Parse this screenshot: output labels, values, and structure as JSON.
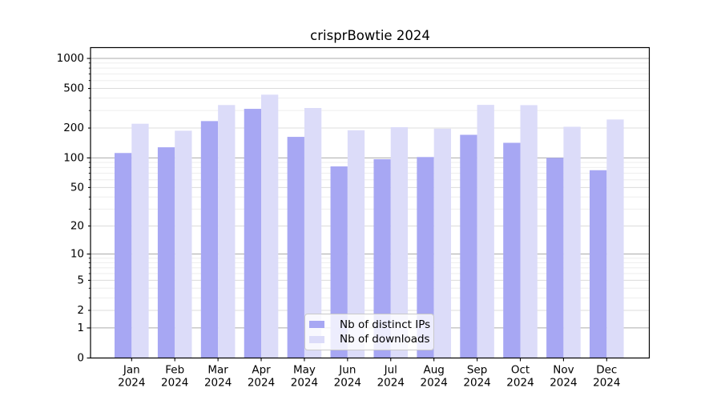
{
  "chart_data": {
    "type": "bar",
    "title": "crisprBowtie 2024",
    "categories": [
      "Jan",
      "Feb",
      "Mar",
      "Apr",
      "May",
      "Jun",
      "Jul",
      "Aug",
      "Sep",
      "Oct",
      "Nov",
      "Dec"
    ],
    "year_label": "2024",
    "series": [
      {
        "name": "Nb of distinct IPs",
        "color": "#a7a7f3",
        "values": [
          112,
          128,
          235,
          312,
          163,
          82,
          97,
          102,
          171,
          142,
          100,
          75
        ]
      },
      {
        "name": "Nb of downloads",
        "color": "#dcdcf9",
        "values": [
          221,
          188,
          341,
          433,
          318,
          190,
          204,
          197,
          342,
          340,
          206,
          244
        ]
      }
    ],
    "yscale": "log1p",
    "yticks": [
      0,
      1,
      2,
      5,
      10,
      20,
      50,
      100,
      200,
      500,
      1000
    ],
    "ylim": [
      0,
      1300
    ],
    "grid": true,
    "legend_position": "lower center"
  },
  "axis": {
    "major_ticks": [
      1,
      10,
      100,
      1000
    ],
    "labeled_minor_ticks": [
      2,
      5,
      20,
      50,
      200,
      500
    ],
    "colors": {
      "grid_major": "#ababab",
      "grid_mid": "#dcdcdc",
      "grid_minor": "#eeeeee",
      "spine": "#000000",
      "text": "#000000"
    }
  }
}
